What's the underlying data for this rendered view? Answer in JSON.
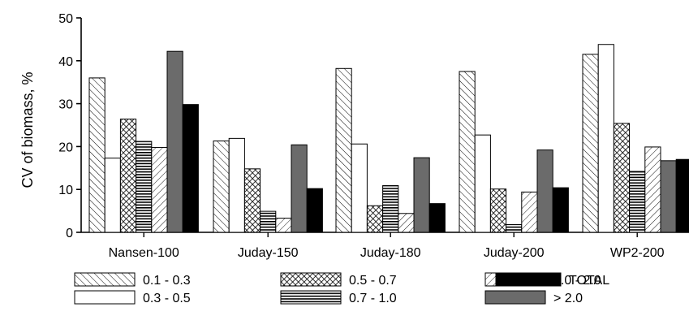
{
  "chart_data": {
    "type": "bar",
    "ylabel": "CV of biomass, %",
    "xlabel": "",
    "ylim": [
      0,
      50
    ],
    "yticks": [
      0,
      10,
      20,
      30,
      40,
      50
    ],
    "categories": [
      "Nansen-100",
      "Juday-150",
      "Juday-180",
      "Juday-200",
      "WP2-200"
    ],
    "series": [
      {
        "name": "0.1 - 0.3",
        "pattern": "diagonal-hatch",
        "values": [
          36,
          21.3,
          38.2,
          37.5,
          41.5
        ]
      },
      {
        "name": "0.3 - 0.5",
        "pattern": "white",
        "values": [
          17.3,
          21.9,
          20.6,
          22.7,
          43.8
        ]
      },
      {
        "name": "0.5 - 0.7",
        "pattern": "crosshatch",
        "values": [
          26.4,
          14.8,
          6.2,
          10.1,
          25.4
        ]
      },
      {
        "name": "0.7 - 1.0",
        "pattern": "horizontal-lines",
        "values": [
          21.2,
          4.9,
          10.9,
          1.8,
          14.2
        ]
      },
      {
        "name": "1.0 - 2.0",
        "pattern": "light-diagonal-hatch",
        "values": [
          19.8,
          3.3,
          4.4,
          9.4,
          19.9
        ]
      },
      {
        "name": "> 2.0",
        "pattern": "gray",
        "values": [
          42.2,
          20.4,
          17.4,
          19.2,
          16.7
        ]
      },
      {
        "name": "TOTAL",
        "pattern": "black",
        "values": [
          29.8,
          10.2,
          6.7,
          10.4,
          17.0
        ]
      }
    ],
    "legend_position": "bottom",
    "colors": {
      "gray": "#6b6b6b",
      "black": "#000000",
      "outline": "#000000"
    }
  }
}
